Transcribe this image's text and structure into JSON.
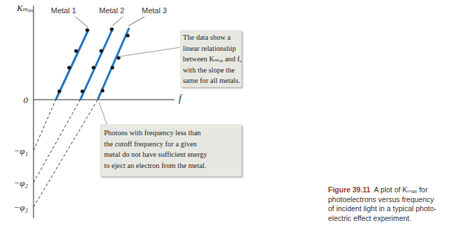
{
  "chart_data": {
    "type": "line",
    "ylabel": "Kₘₐₓ",
    "xlabel": "f",
    "xlim": [
      0,
      20.2
    ],
    "ylim": [
      -17,
      13.5
    ],
    "yticks": [
      {
        "value": 0,
        "label": "0"
      },
      {
        "value": -7.3,
        "label": "−φ₁"
      },
      {
        "value": -11.9,
        "label": "−φ₂"
      },
      {
        "value": -15.4,
        "label": "−φ₃"
      }
    ],
    "tick_labels": "y",
    "series": [
      {
        "name": "Metal 1",
        "color": "#1e73be",
        "line": {
          "x": [
            0,
            3.2,
            7.9
          ],
          "values": [
            -7.3,
            0,
            10.1
          ]
        },
        "points": {
          "x": [
            3.7,
            5.1,
            6.1,
            7.7
          ],
          "values": [
            1.2,
            4.6,
            7.0,
            10.0
          ]
        }
      },
      {
        "name": "Metal 2",
        "color": "#1e73be",
        "line": {
          "x": [
            0,
            6.7,
            11.4
          ],
          "values": [
            -11.9,
            0,
            10.3
          ]
        },
        "points": {
          "x": [
            7.0,
            8.6,
            9.7,
            11.2
          ],
          "values": [
            1.2,
            4.6,
            7.0,
            10.1
          ]
        }
      },
      {
        "name": "Metal 3",
        "color": "#1e73be",
        "line": {
          "x": [
            0,
            9.2,
            13.7
          ],
          "values": [
            -15.4,
            0,
            10.3
          ]
        },
        "points": {
          "x": [
            9.9,
            11.3,
            12.2,
            13.5
          ],
          "values": [
            1.3,
            4.6,
            6.0,
            9.2
          ]
        }
      }
    ],
    "annotations": [
      {
        "text": [
          "The data show a",
          "linear relationship",
          "between Kₘₐₓ and f,",
          "with the slope the",
          "same for all metals."
        ]
      },
      {
        "text": [
          "Photons with frequency less than",
          "the cutoff frequency for a given",
          "metal do not have sufficient energy",
          "to eject an electron from the metal."
        ]
      }
    ],
    "caption": {
      "label": "Figure 39.11",
      "text": [
        "A plot of Kₘₐₓ for",
        "photoelectrons versus frequency",
        "of incident light in a typical photo-",
        "electric effect experiment."
      ]
    }
  }
}
